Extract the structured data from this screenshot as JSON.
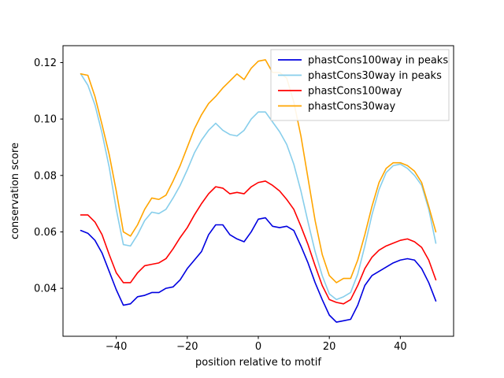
{
  "figure": {
    "background": "#ffffff"
  },
  "chart_data": {
    "type": "line",
    "title": "",
    "xlabel": "position relative to motif",
    "ylabel": "conservation score",
    "xlim": [
      -55,
      55
    ],
    "ylim": [
      0.023,
      0.126
    ],
    "xticks": [
      -40,
      -20,
      0,
      20,
      40
    ],
    "xticklabels": [
      "−40",
      "−20",
      "0",
      "20",
      "40"
    ],
    "yticks": [
      0.04,
      0.06,
      0.08,
      0.1,
      0.12
    ],
    "yticklabels": [
      "0.04",
      "0.06",
      "0.08",
      "0.10",
      "0.12"
    ],
    "grid": false,
    "legend": {
      "position": "upper right",
      "frame": true,
      "frame_color": "#cccccc"
    },
    "x": [
      -50,
      -48,
      -46,
      -44,
      -42,
      -40,
      -38,
      -36,
      -34,
      -32,
      -30,
      -28,
      -26,
      -24,
      -22,
      -20,
      -18,
      -16,
      -14,
      -12,
      -10,
      -8,
      -6,
      -4,
      -2,
      0,
      2,
      4,
      6,
      8,
      10,
      12,
      14,
      16,
      18,
      20,
      22,
      24,
      26,
      28,
      30,
      32,
      34,
      36,
      38,
      40,
      42,
      44,
      46,
      48,
      50
    ],
    "series": [
      {
        "name": "phastCons100way in peaks",
        "color": "#0000e0",
        "values": [
          0.0605,
          0.0595,
          0.057,
          0.0525,
          0.046,
          0.0395,
          0.034,
          0.0345,
          0.037,
          0.0375,
          0.0385,
          0.0385,
          0.04,
          0.0405,
          0.043,
          0.047,
          0.05,
          0.053,
          0.059,
          0.0625,
          0.0625,
          0.059,
          0.0575,
          0.0565,
          0.06,
          0.0645,
          0.065,
          0.062,
          0.0615,
          0.062,
          0.0605,
          0.055,
          0.049,
          0.042,
          0.036,
          0.0305,
          0.028,
          0.0285,
          0.029,
          0.034,
          0.041,
          0.0445,
          0.046,
          0.0475,
          0.049,
          0.05,
          0.0505,
          0.05,
          0.047,
          0.042,
          0.0355
        ]
      },
      {
        "name": "phastCons30way in peaks",
        "color": "#87ceeb",
        "values": [
          0.116,
          0.112,
          0.105,
          0.095,
          0.083,
          0.068,
          0.0555,
          0.055,
          0.059,
          0.064,
          0.067,
          0.0665,
          0.068,
          0.072,
          0.0765,
          0.082,
          0.088,
          0.0925,
          0.096,
          0.0985,
          0.096,
          0.0945,
          0.094,
          0.096,
          0.1,
          0.1025,
          0.1025,
          0.099,
          0.0955,
          0.091,
          0.084,
          0.0745,
          0.0635,
          0.053,
          0.0445,
          0.038,
          0.036,
          0.037,
          0.0385,
          0.045,
          0.055,
          0.066,
          0.075,
          0.081,
          0.0835,
          0.084,
          0.0825,
          0.08,
          0.0765,
          0.068,
          0.056
        ]
      },
      {
        "name": "phastCons100way",
        "color": "#ff0000",
        "values": [
          0.066,
          0.066,
          0.0635,
          0.059,
          0.052,
          0.0455,
          0.042,
          0.042,
          0.0455,
          0.048,
          0.0485,
          0.049,
          0.0505,
          0.054,
          0.058,
          0.0615,
          0.066,
          0.07,
          0.0735,
          0.076,
          0.0755,
          0.0735,
          0.074,
          0.0735,
          0.076,
          0.0775,
          0.078,
          0.0765,
          0.0745,
          0.0715,
          0.068,
          0.062,
          0.0555,
          0.048,
          0.041,
          0.036,
          0.035,
          0.0345,
          0.036,
          0.041,
          0.047,
          0.051,
          0.0535,
          0.055,
          0.056,
          0.057,
          0.0575,
          0.0565,
          0.0545,
          0.05,
          0.043
        ]
      },
      {
        "name": "phastCons30way",
        "color": "#ffa500",
        "values": [
          0.116,
          0.1155,
          0.108,
          0.098,
          0.0875,
          0.0745,
          0.06,
          0.0585,
          0.0625,
          0.068,
          0.072,
          0.0715,
          0.073,
          0.078,
          0.0835,
          0.09,
          0.0965,
          0.1015,
          0.1055,
          0.108,
          0.111,
          0.1135,
          0.116,
          0.114,
          0.118,
          0.1205,
          0.121,
          0.1165,
          0.1165,
          0.1145,
          0.106,
          0.094,
          0.079,
          0.064,
          0.052,
          0.0445,
          0.042,
          0.0435,
          0.0435,
          0.05,
          0.059,
          0.069,
          0.0775,
          0.0825,
          0.0845,
          0.0845,
          0.0835,
          0.0815,
          0.0775,
          0.069,
          0.06
        ]
      }
    ]
  }
}
